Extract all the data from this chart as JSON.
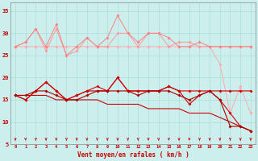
{
  "xlabel": "Vent moyen/en rafales ( km/h )",
  "x": [
    0,
    1,
    2,
    3,
    4,
    5,
    6,
    7,
    8,
    9,
    10,
    11,
    12,
    13,
    14,
    15,
    16,
    17,
    18,
    19,
    20,
    21,
    22,
    23
  ],
  "rafales1": [
    27,
    27,
    27,
    27,
    27,
    27,
    27,
    27,
    27,
    27,
    27,
    27,
    27,
    27,
    27,
    27,
    27,
    27,
    27,
    27,
    23,
    12,
    18,
    12
  ],
  "rafales2": [
    27,
    28,
    31,
    26,
    31,
    25,
    26,
    29,
    27,
    27,
    30,
    30,
    27,
    30,
    30,
    27,
    28,
    28,
    27,
    27,
    27,
    27,
    27,
    27
  ],
  "rafales3": [
    27,
    28,
    31,
    27,
    32,
    25,
    27,
    29,
    27,
    29,
    34,
    30,
    28,
    30,
    30,
    29,
    27,
    27,
    28,
    27,
    27,
    27,
    27,
    27
  ],
  "moyen_diag": [
    16,
    16,
    16,
    16,
    15,
    15,
    15,
    15,
    15,
    14,
    14,
    14,
    14,
    13,
    13,
    13,
    13,
    12,
    12,
    12,
    11,
    10,
    9,
    8
  ],
  "moyen1": [
    16,
    15,
    17,
    19,
    17,
    15,
    16,
    17,
    18,
    17,
    20,
    17,
    17,
    17,
    17,
    18,
    17,
    17,
    17,
    17,
    15,
    12,
    9,
    8
  ],
  "moyen2": [
    16,
    15,
    17,
    19,
    17,
    15,
    16,
    17,
    17,
    17,
    20,
    17,
    17,
    17,
    17,
    18,
    17,
    14,
    16,
    17,
    17,
    17,
    17,
    17
  ],
  "moyen3": [
    16,
    16,
    17,
    17,
    16,
    15,
    15,
    16,
    17,
    17,
    17,
    17,
    16,
    17,
    17,
    17,
    16,
    15,
    16,
    17,
    15,
    9,
    9,
    8
  ],
  "bg_color": "#cceeed",
  "grid_color": "#aadddd",
  "ylim": [
    5,
    37
  ],
  "yticks": [
    5,
    10,
    15,
    20,
    25,
    30,
    35
  ]
}
